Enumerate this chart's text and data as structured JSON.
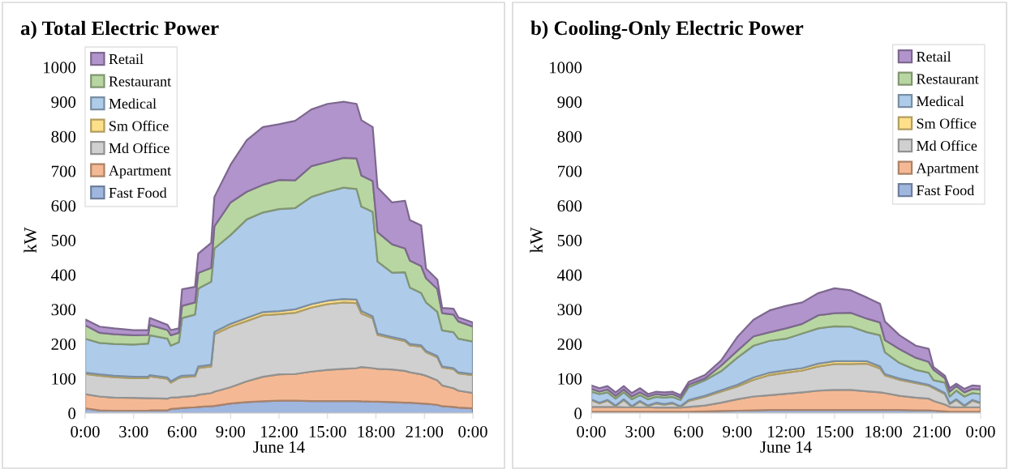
{
  "chart_data": [
    {
      "type": "area",
      "stacked": true,
      "title": "a) Total Electric Power",
      "xlabel": "June 14",
      "ylabel": "kW",
      "legend": "top left",
      "xlim": [
        0,
        24
      ],
      "ylim": [
        0,
        1000
      ],
      "xticks": [
        {
          "value": 0,
          "label": "0:00"
        },
        {
          "value": 3,
          "label": "3:00"
        },
        {
          "value": 6,
          "label": "6:00"
        },
        {
          "value": 9,
          "label": "9:00"
        },
        {
          "value": 12,
          "label": "12:00"
        },
        {
          "value": 15,
          "label": "15:00"
        },
        {
          "value": 18,
          "label": "18:00"
        },
        {
          "value": 21,
          "label": "21:00"
        },
        {
          "value": 24,
          "label": "0:00"
        }
      ],
      "yticks": [
        0,
        100,
        200,
        300,
        400,
        500,
        600,
        700,
        800,
        900,
        1000
      ],
      "x": [
        0,
        0.9,
        1.8,
        3,
        3.9,
        4.0,
        5.1,
        5.3,
        5.8,
        6.0,
        6.8,
        7.0,
        7.8,
        8.0,
        9,
        10,
        11,
        12,
        13,
        14,
        15,
        16,
        16.8,
        17.1,
        17.8,
        18.1,
        19,
        19.8,
        20.1,
        20.8,
        21.1,
        21.8,
        22.1,
        22.8,
        23.1,
        24
      ],
      "series": [
        {
          "name": "Fast Food",
          "color": "#9fb6df",
          "values": [
            14,
            8,
            7,
            7,
            7,
            8,
            8,
            12,
            14,
            15,
            17,
            18,
            20,
            21,
            28,
            32,
            34,
            36,
            36,
            35,
            35,
            35,
            35,
            34,
            33,
            33,
            32,
            30,
            30,
            28,
            27,
            24,
            20,
            18,
            16,
            14
          ]
        },
        {
          "name": "Apartment",
          "color": "#f4b994",
          "values": [
            41,
            40,
            38,
            37,
            36,
            35,
            34,
            33,
            32,
            32,
            33,
            35,
            38,
            41,
            47,
            60,
            71,
            76,
            77,
            85,
            90,
            93,
            95,
            99,
            97,
            95,
            94,
            92,
            88,
            84,
            81,
            71,
            60,
            54,
            49,
            44
          ]
        },
        {
          "name": "Md Office",
          "color": "#d0d0d0",
          "values": [
            58,
            60,
            59,
            57,
            58,
            63,
            57,
            43,
            55,
            57,
            56,
            77,
            77,
            166,
            175,
            174,
            178,
            174,
            177,
            185,
            190,
            192,
            188,
            155,
            144,
            98,
            90,
            86,
            78,
            80,
            68,
            66,
            52,
            55,
            50,
            52
          ]
        },
        {
          "name": "Sm Office",
          "color": "#ffe08a",
          "values": [
            4,
            4,
            4,
            4,
            4,
            4,
            4,
            4,
            4,
            4,
            4,
            5,
            5,
            7,
            8,
            9,
            9,
            9,
            10,
            10,
            10,
            10,
            10,
            7,
            6,
            4,
            4,
            4,
            4,
            4,
            4,
            4,
            3,
            3,
            3,
            3
          ]
        },
        {
          "name": "Medical",
          "color": "#aecbe9",
          "values": [
            98,
            91,
            92,
            93,
            96,
            115,
            112,
            103,
            100,
            167,
            175,
            225,
            240,
            241,
            257,
            285,
            288,
            295,
            293,
            310,
            315,
            322,
            320,
            302,
            302,
            208,
            186,
            195,
            163,
            151,
            140,
            128,
            104,
            104,
            97,
            94
          ]
        },
        {
          "name": "Restaurant",
          "color": "#b8d6a2",
          "values": [
            39,
            29,
            28,
            27,
            25,
            30,
            25,
            30,
            27,
            35,
            35,
            45,
            40,
            64,
            94,
            80,
            80,
            84,
            80,
            89,
            86,
            86,
            88,
            90,
            89,
            85,
            82,
            69,
            78,
            78,
            70,
            66,
            50,
            51,
            50,
            43
          ]
        },
        {
          "name": "Retail",
          "color": "#b294cc",
          "values": [
            17,
            18,
            17,
            15,
            14,
            20,
            15,
            15,
            13,
            48,
            45,
            56,
            72,
            85,
            109,
            149,
            167,
            161,
            172,
            164,
            168,
            162,
            158,
            160,
            156,
            129,
            121,
            138,
            117,
            118,
            28,
            27,
            15,
            17,
            12,
            12
          ]
        }
      ]
    },
    {
      "type": "area",
      "stacked": true,
      "title": "b) Cooling-Only Electric Power",
      "xlabel": "June 14",
      "ylabel": "kW",
      "legend": "top right",
      "xlim": [
        0,
        24
      ],
      "ylim": [
        0,
        1000
      ],
      "xticks": [
        {
          "value": 0,
          "label": "0:00"
        },
        {
          "value": 3,
          "label": "3:00"
        },
        {
          "value": 6,
          "label": "6:00"
        },
        {
          "value": 9,
          "label": "9:00"
        },
        {
          "value": 12,
          "label": "12:00"
        },
        {
          "value": 15,
          "label": "15:00"
        },
        {
          "value": 18,
          "label": "18:00"
        },
        {
          "value": 21,
          "label": "21:00"
        },
        {
          "value": 24,
          "label": "0:00"
        }
      ],
      "yticks": [
        0,
        100,
        200,
        300,
        400,
        500,
        600,
        700,
        800,
        900,
        1000
      ],
      "x": [
        0,
        0.5,
        1,
        1.5,
        2,
        2.5,
        3,
        3.5,
        4,
        4.5,
        5,
        5.5,
        6,
        7,
        8,
        9,
        10,
        11,
        12,
        13,
        14,
        15,
        16,
        17,
        17.8,
        18.1,
        19,
        20,
        20.8,
        21.1,
        21.8,
        22.1,
        22.5,
        23,
        23.5,
        24
      ],
      "series": [
        {
          "name": "Fast Food",
          "color": "#9fb6df",
          "values": [
            4,
            4,
            4,
            4,
            4,
            4,
            4,
            4,
            4,
            4,
            4,
            4,
            4,
            5,
            6,
            7,
            8,
            9,
            9,
            9,
            9,
            9,
            9,
            9,
            9,
            9,
            9,
            8,
            8,
            7,
            5,
            4,
            4,
            4,
            4,
            4
          ]
        },
        {
          "name": "Apartment",
          "color": "#f4b994",
          "values": [
            14,
            14,
            14,
            14,
            13,
            13,
            13,
            13,
            12,
            12,
            12,
            12,
            14,
            17,
            24,
            33,
            40,
            43,
            47,
            51,
            56,
            58,
            58,
            54,
            51,
            49,
            41,
            37,
            34,
            28,
            20,
            14,
            13,
            13,
            13,
            13
          ]
        },
        {
          "name": "Md Office",
          "color": "#d0d0d0",
          "values": [
            20,
            10,
            18,
            2,
            21,
            1,
            16,
            3,
            12,
            8,
            12,
            2,
            17,
            25,
            32,
            37,
            48,
            58,
            61,
            63,
            70,
            75,
            75,
            80,
            69,
            51,
            46,
            42,
            37,
            37,
            30,
            8,
            21,
            3,
            19,
            11
          ]
        },
        {
          "name": "Sm Office",
          "color": "#ffe08a",
          "values": [
            2,
            2,
            2,
            2,
            2,
            2,
            2,
            2,
            2,
            2,
            2,
            2,
            3,
            3,
            4,
            5,
            7,
            7,
            7,
            7,
            8,
            8,
            8,
            7,
            6,
            4,
            4,
            3,
            3,
            3,
            3,
            2,
            2,
            2,
            2,
            2
          ]
        },
        {
          "name": "Medical",
          "color": "#aecbe9",
          "values": [
            22,
            25,
            22,
            20,
            20,
            20,
            17,
            18,
            17,
            19,
            17,
            18,
            37,
            45,
            55,
            78,
            92,
            92,
            91,
            100,
            102,
            101,
            100,
            84,
            90,
            63,
            45,
            35,
            35,
            20,
            30,
            20,
            25,
            26,
            20,
            25
          ]
        },
        {
          "name": "Restaurant",
          "color": "#b8d6a2",
          "values": [
            8,
            7,
            8,
            8,
            8,
            8,
            8,
            8,
            8,
            7,
            8,
            7,
            7,
            5,
            16,
            20,
            27,
            25,
            30,
            28,
            38,
            38,
            40,
            39,
            37,
            35,
            40,
            35,
            31,
            30,
            13,
            14,
            13,
            12,
            12,
            13
          ]
        },
        {
          "name": "Retail",
          "color": "#b294cc",
          "values": [
            10,
            10,
            10,
            10,
            10,
            10,
            12,
            7,
            7,
            8,
            7,
            7,
            8,
            10,
            15,
            40,
            48,
            63,
            65,
            62,
            64,
            72,
            65,
            61,
            54,
            54,
            40,
            35,
            38,
            8,
            7,
            10,
            7,
            10,
            10,
            10
          ]
        }
      ]
    }
  ]
}
